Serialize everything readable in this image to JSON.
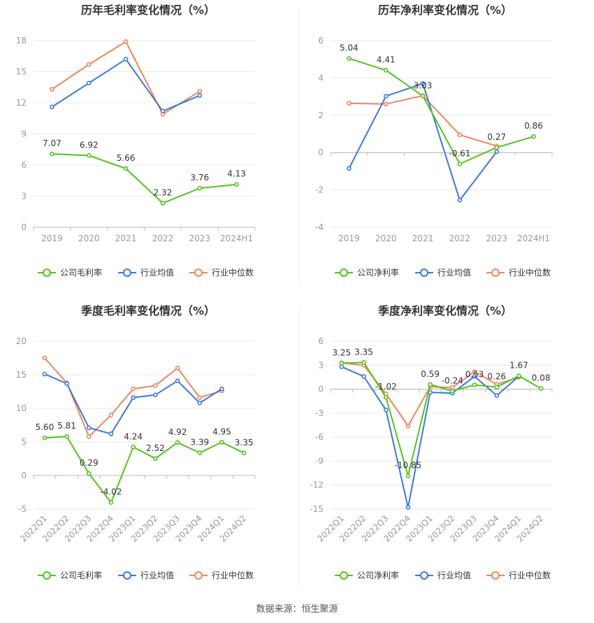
{
  "footer": "数据来源：恒生聚源",
  "colors": {
    "company": "#52c41a",
    "avg": "#3a77e6",
    "median": "#f0845a",
    "grid": "#e8e8e8",
    "axis": "#999999"
  },
  "chart_data": [
    {
      "type": "line",
      "title": "历年毛利率变化情况（%）",
      "categories": [
        "2019",
        "2020",
        "2021",
        "2022",
        "2023",
        "2024H1"
      ],
      "yticks": [
        0,
        3,
        6,
        9,
        12,
        15,
        18
      ],
      "ylim": [
        0,
        18
      ],
      "label_decimals": 2,
      "series": [
        {
          "name": "公司毛利率",
          "key": "company",
          "values": [
            7.07,
            6.92,
            5.66,
            2.32,
            3.76,
            4.13
          ],
          "labels": true
        },
        {
          "name": "行业均值",
          "key": "avg",
          "values": [
            11.6,
            13.9,
            16.2,
            11.2,
            12.7,
            null
          ],
          "labels": false
        },
        {
          "name": "行业中位数",
          "key": "median",
          "values": [
            13.3,
            15.7,
            17.9,
            10.9,
            13.1,
            null
          ],
          "labels": false
        }
      ],
      "rotate_xticks": false
    },
    {
      "type": "line",
      "title": "历年净利率变化情况（%）",
      "categories": [
        "2019",
        "2020",
        "2021",
        "2022",
        "2023",
        "2024H1"
      ],
      "yticks": [
        -4,
        -2,
        0,
        2,
        4,
        6
      ],
      "ylim": [
        -4,
        6
      ],
      "label_decimals": 2,
      "series": [
        {
          "name": "公司净利率",
          "key": "company",
          "values": [
            5.04,
            4.41,
            3.03,
            -0.61,
            0.27,
            0.86
          ],
          "labels": true
        },
        {
          "name": "行业均值",
          "key": "avg",
          "values": [
            -0.85,
            3.02,
            3.7,
            -2.55,
            0.05,
            null
          ],
          "labels": false
        },
        {
          "name": "行业中位数",
          "key": "median",
          "values": [
            2.64,
            2.6,
            3.05,
            0.95,
            0.35,
            null
          ],
          "labels": false
        }
      ],
      "rotate_xticks": false
    },
    {
      "type": "line",
      "title": "季度毛利率变化情况（%）",
      "categories": [
        "2022Q1",
        "2022Q2",
        "2022Q3",
        "2022Q4",
        "2023Q1",
        "2023Q2",
        "2023Q3",
        "2023Q4",
        "2024Q1",
        "2024Q2"
      ],
      "yticks": [
        -5,
        0,
        5,
        10,
        15,
        20
      ],
      "ylim": [
        -5,
        20
      ],
      "label_decimals": 2,
      "series": [
        {
          "name": "公司毛利率",
          "key": "company",
          "values": [
            5.6,
            5.81,
            0.29,
            -4.02,
            4.24,
            2.52,
            4.92,
            3.39,
            4.95,
            3.35
          ],
          "labels": true
        },
        {
          "name": "行业均值",
          "key": "avg",
          "values": [
            15.1,
            13.7,
            7.1,
            6.2,
            11.6,
            12.0,
            14.1,
            10.8,
            12.9,
            null
          ],
          "labels": false
        },
        {
          "name": "行业中位数",
          "key": "median",
          "values": [
            17.5,
            13.8,
            5.8,
            9.0,
            12.9,
            13.4,
            16.0,
            11.6,
            12.6,
            null
          ],
          "labels": false
        }
      ],
      "rotate_xticks": true
    },
    {
      "type": "line",
      "title": "季度净利率变化情况（%）",
      "categories": [
        "2022Q1",
        "2022Q2",
        "2022Q3",
        "2022Q4",
        "2023Q1",
        "2023Q2",
        "2023Q3",
        "2023Q4",
        "2024Q1",
        "2024Q2"
      ],
      "yticks": [
        -15,
        -12,
        -9,
        -6,
        -3,
        0,
        3,
        6
      ],
      "ylim": [
        -15,
        6
      ],
      "label_decimals": 2,
      "series": [
        {
          "name": "公司净利率",
          "key": "company",
          "values": [
            3.25,
            3.35,
            -1.02,
            -10.85,
            0.59,
            -0.24,
            0.53,
            0.26,
            1.67,
            0.08
          ],
          "labels": true
        },
        {
          "name": "行业均值",
          "key": "avg",
          "values": [
            2.8,
            1.6,
            -2.6,
            -14.8,
            -0.4,
            -0.5,
            1.6,
            -0.8,
            1.6,
            null
          ],
          "labels": false
        },
        {
          "name": "行业中位数",
          "key": "median",
          "values": [
            3.3,
            3.0,
            -0.6,
            -4.6,
            0.3,
            0.2,
            2.2,
            0.6,
            1.5,
            null
          ],
          "labels": false
        }
      ],
      "rotate_xticks": true
    }
  ]
}
